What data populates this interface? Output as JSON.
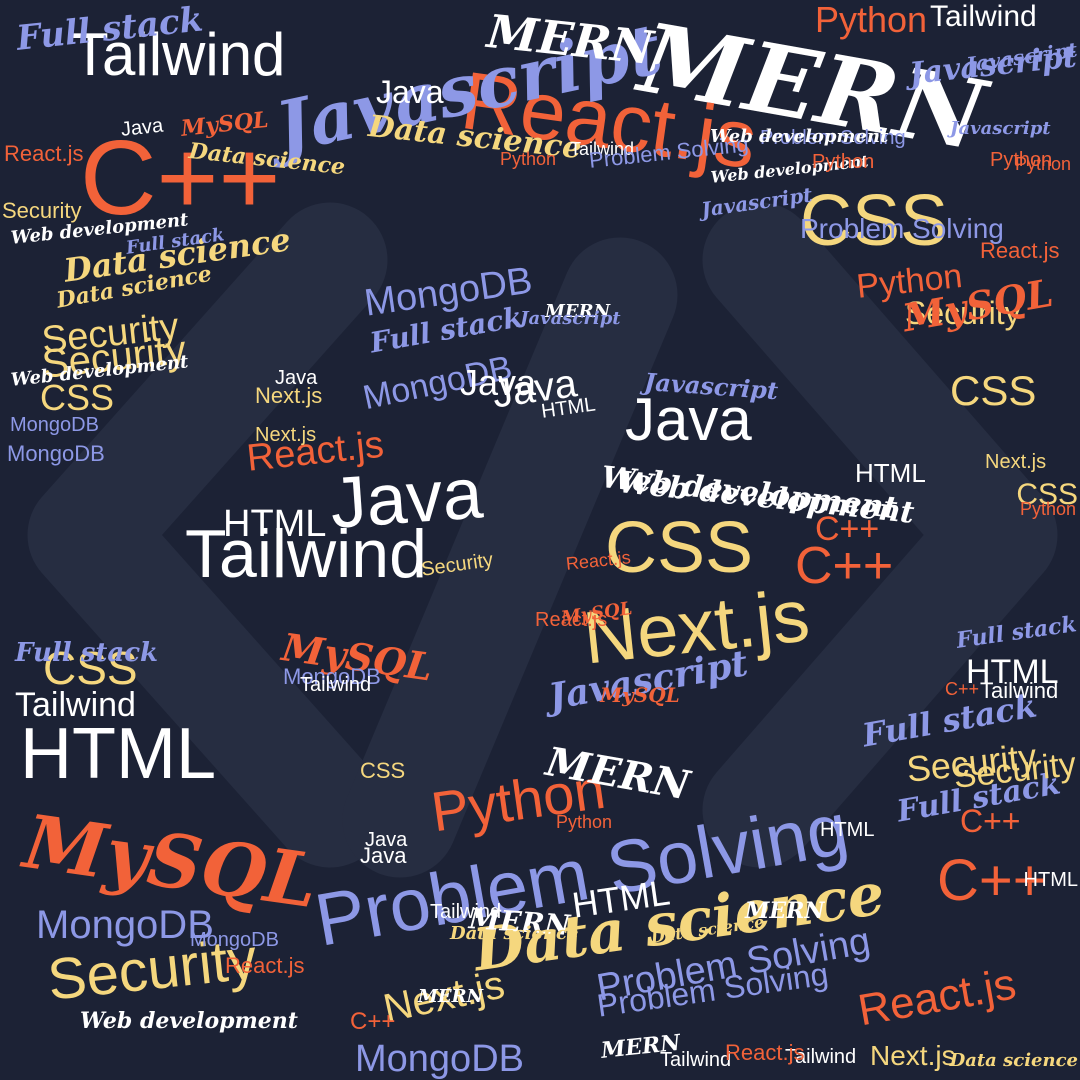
{
  "colors": {
    "background": "#1c2235",
    "bracket": "#262d41",
    "white": "#ffffff",
    "orange": "#f26239",
    "periwinkle": "#8d98e6",
    "yellow": "#f5d77e"
  },
  "words": [
    {
      "t": "MERN",
      "c": "white",
      "f": "script"
    },
    {
      "t": "Problem Solving",
      "c": "periwinkle",
      "f": "sans"
    },
    {
      "t": "React.js",
      "c": "orange",
      "f": "sans"
    },
    {
      "t": "Javascript",
      "c": "periwinkle",
      "f": "script"
    },
    {
      "t": "C++",
      "c": "orange",
      "f": "sans"
    },
    {
      "t": "Data science",
      "c": "yellow",
      "f": "script"
    },
    {
      "t": "MySQL",
      "c": "orange",
      "f": "script"
    },
    {
      "t": "Java",
      "c": "white",
      "f": "sans"
    },
    {
      "t": "Tailwind",
      "c": "white",
      "f": "sans"
    },
    {
      "t": "HTML",
      "c": "white",
      "f": "sans"
    },
    {
      "t": "Security",
      "c": "yellow",
      "f": "sans"
    },
    {
      "t": "CSS",
      "c": "yellow",
      "f": "sans"
    },
    {
      "t": "Next.js",
      "c": "yellow",
      "f": "sans"
    },
    {
      "t": "Python",
      "c": "orange",
      "f": "sans"
    },
    {
      "t": "Java",
      "c": "white",
      "f": "sans"
    },
    {
      "t": "Tailwind",
      "c": "white",
      "f": "sans"
    },
    {
      "t": "Web development",
      "c": "white",
      "f": "script"
    },
    {
      "t": "C++",
      "c": "orange",
      "f": "sans"
    },
    {
      "t": "CSS",
      "c": "yellow",
      "f": "sans"
    },
    {
      "t": "MongoDB",
      "c": "periwinkle",
      "f": "sans"
    },
    {
      "t": "Full stack",
      "c": "periwinkle",
      "f": "script"
    },
    {
      "t": "Javascript",
      "c": "periwinkle",
      "f": "script"
    },
    {
      "t": "MERN",
      "c": "white",
      "f": "script"
    },
    {
      "t": "Python",
      "c": "orange",
      "f": "sans"
    },
    {
      "t": "React.js",
      "c": "orange",
      "f": "sans"
    },
    {
      "t": "Data science",
      "c": "yellow",
      "f": "script"
    },
    {
      "t": "Security",
      "c": "yellow",
      "f": "sans"
    },
    {
      "t": "MongoDB",
      "c": "periwinkle",
      "f": "sans"
    },
    {
      "t": "Problem Solving",
      "c": "periwinkle",
      "f": "sans"
    },
    {
      "t": "Next.js",
      "c": "yellow",
      "f": "sans"
    },
    {
      "t": "MySQL",
      "c": "orange",
      "f": "script"
    },
    {
      "t": "HTML",
      "c": "white",
      "f": "sans"
    },
    {
      "t": "C++",
      "c": "orange",
      "f": "sans"
    },
    {
      "t": "Full stack",
      "c": "periwinkle",
      "f": "script"
    },
    {
      "t": "Security",
      "c": "yellow",
      "f": "sans"
    },
    {
      "t": "Python",
      "c": "orange",
      "f": "sans"
    },
    {
      "t": "MERN",
      "c": "white",
      "f": "script"
    },
    {
      "t": "CSS",
      "c": "yellow",
      "f": "sans"
    },
    {
      "t": "Tailwind",
      "c": "white",
      "f": "sans"
    },
    {
      "t": "MongoDB",
      "c": "periwinkle",
      "f": "sans"
    },
    {
      "t": "Full stack",
      "c": "periwinkle",
      "f": "script"
    },
    {
      "t": "MERN",
      "c": "white",
      "f": "script"
    },
    {
      "t": "Javascript",
      "c": "periwinkle",
      "f": "script"
    },
    {
      "t": "Tailwind",
      "c": "white",
      "f": "sans"
    },
    {
      "t": "Java",
      "c": "white",
      "f": "sans"
    },
    {
      "t": "Security",
      "c": "yellow",
      "f": "sans"
    },
    {
      "t": "React.js",
      "c": "orange",
      "f": "sans"
    },
    {
      "t": "HTML",
      "c": "white",
      "f": "sans"
    },
    {
      "t": "Data science",
      "c": "yellow",
      "f": "script"
    },
    {
      "t": "MySQL",
      "c": "orange",
      "f": "script"
    },
    {
      "t": "Security",
      "c": "yellow",
      "f": "sans"
    },
    {
      "t": "Python",
      "c": "orange",
      "f": "sans"
    },
    {
      "t": "CSS",
      "c": "yellow",
      "f": "sans"
    },
    {
      "t": "Java",
      "c": "white",
      "f": "sans"
    },
    {
      "t": "MongoDB",
      "c": "periwinkle",
      "f": "sans"
    },
    {
      "t": "HTML",
      "c": "white",
      "f": "sans"
    },
    {
      "t": "Next.js",
      "c": "yellow",
      "f": "sans"
    },
    {
      "t": "React.js",
      "c": "orange",
      "f": "sans"
    },
    {
      "t": "C++",
      "c": "orange",
      "f": "sans"
    },
    {
      "t": "Web development",
      "c": "white",
      "f": "script"
    },
    {
      "t": "Data science",
      "c": "yellow",
      "f": "script"
    },
    {
      "t": "Web development",
      "c": "white",
      "f": "script"
    },
    {
      "t": "MySQL",
      "c": "orange",
      "f": "script"
    },
    {
      "t": "Full stack",
      "c": "periwinkle",
      "f": "script"
    },
    {
      "t": "React.js",
      "c": "orange",
      "f": "sans"
    },
    {
      "t": "Javascript",
      "c": "periwinkle",
      "f": "script"
    },
    {
      "t": "Next.js",
      "c": "yellow",
      "f": "sans"
    },
    {
      "t": "Security",
      "c": "yellow",
      "f": "sans"
    },
    {
      "t": "Problem Solving",
      "c": "periwinkle",
      "f": "sans"
    },
    {
      "t": "MERN",
      "c": "white",
      "f": "script"
    },
    {
      "t": "Java",
      "c": "white",
      "f": "sans"
    },
    {
      "t": "Web development",
      "c": "white",
      "f": "script"
    },
    {
      "t": "CSS",
      "c": "yellow",
      "f": "sans"
    },
    {
      "t": "MongoDB",
      "c": "periwinkle",
      "f": "sans"
    },
    {
      "t": "Data science",
      "c": "yellow",
      "f": "script"
    },
    {
      "t": "Python",
      "c": "orange",
      "f": "sans"
    },
    {
      "t": "Full stack",
      "c": "periwinkle",
      "f": "script"
    },
    {
      "t": "HTML",
      "c": "white",
      "f": "sans"
    },
    {
      "t": "Tailwind",
      "c": "white",
      "f": "sans"
    },
    {
      "t": "Javascript",
      "c": "periwinkle",
      "f": "script"
    },
    {
      "t": "C++",
      "c": "orange",
      "f": "sans"
    },
    {
      "t": "Java",
      "c": "white",
      "f": "sans"
    },
    {
      "t": "Next.js",
      "c": "yellow",
      "f": "sans"
    },
    {
      "t": "React.js",
      "c": "orange",
      "f": "sans"
    },
    {
      "t": "HTML",
      "c": "white",
      "f": "sans"
    },
    {
      "t": "Security",
      "c": "yellow",
      "f": "sans"
    },
    {
      "t": "MERN",
      "c": "white",
      "f": "script"
    },
    {
      "t": "Web development",
      "c": "white",
      "f": "script"
    },
    {
      "t": "Python",
      "c": "orange",
      "f": "sans"
    },
    {
      "t": "MySQL",
      "c": "orange",
      "f": "script"
    },
    {
      "t": "Problem Solving",
      "c": "periwinkle",
      "f": "sans"
    },
    {
      "t": "Java",
      "c": "white",
      "f": "sans"
    },
    {
      "t": "Tailwind",
      "c": "white",
      "f": "sans"
    },
    {
      "t": "Python",
      "c": "orange",
      "f": "sans"
    },
    {
      "t": "Javascript",
      "c": "periwinkle",
      "f": "script"
    },
    {
      "t": "Data science",
      "c": "yellow",
      "f": "script"
    },
    {
      "t": "React.js",
      "c": "orange",
      "f": "sans"
    },
    {
      "t": "MongoDB",
      "c": "periwinkle",
      "f": "sans"
    },
    {
      "t": "MongoDB",
      "c": "periwinkle",
      "f": "sans"
    },
    {
      "t": "Tailwind",
      "c": "white",
      "f": "sans"
    },
    {
      "t": "MERN",
      "c": "white",
      "f": "script"
    },
    {
      "t": "Full stack",
      "c": "periwinkle",
      "f": "script"
    },
    {
      "t": "C++",
      "c": "orange",
      "f": "sans"
    },
    {
      "t": "Security",
      "c": "yellow",
      "f": "sans"
    },
    {
      "t": "CSS",
      "c": "yellow",
      "f": "sans"
    },
    {
      "t": "MongoDB",
      "c": "periwinkle",
      "f": "sans"
    },
    {
      "t": "Full stack",
      "c": "periwinkle",
      "f": "script"
    },
    {
      "t": "HTML",
      "c": "white",
      "f": "sans"
    },
    {
      "t": "Tailwind",
      "c": "white",
      "f": "sans"
    },
    {
      "t": "Python",
      "c": "orange",
      "f": "sans"
    },
    {
      "t": "HTML",
      "c": "white",
      "f": "sans"
    },
    {
      "t": "Java",
      "c": "white",
      "f": "sans"
    },
    {
      "t": "Python",
      "c": "orange",
      "f": "sans"
    },
    {
      "t": "MERN",
      "c": "white",
      "f": "script"
    },
    {
      "t": "Problem Solving",
      "c": "periwinkle",
      "f": "sans"
    },
    {
      "t": "Web development",
      "c": "white",
      "f": "script"
    },
    {
      "t": "Tailwind",
      "c": "white",
      "f": "sans"
    },
    {
      "t": "Javascript",
      "c": "periwinkle",
      "f": "script"
    },
    {
      "t": "Data science",
      "c": "yellow",
      "f": "script"
    },
    {
      "t": "Problem Solving",
      "c": "periwinkle",
      "f": "sans"
    },
    {
      "t": "MySQL",
      "c": "orange",
      "f": "script"
    },
    {
      "t": "CSS",
      "c": "yellow",
      "f": "sans"
    },
    {
      "t": "Next.js",
      "c": "yellow",
      "f": "sans"
    },
    {
      "t": "React.js",
      "c": "orange",
      "f": "sans"
    },
    {
      "t": "Java",
      "c": "white",
      "f": "sans"
    },
    {
      "t": "Tailwind",
      "c": "white",
      "f": "sans"
    },
    {
      "t": "Data science",
      "c": "yellow",
      "f": "script"
    },
    {
      "t": "React.js",
      "c": "orange",
      "f": "sans"
    },
    {
      "t": "C++",
      "c": "orange",
      "f": "sans"
    },
    {
      "t": "Web development",
      "c": "white",
      "f": "script"
    },
    {
      "t": "Javascript",
      "c": "periwinkle",
      "f": "script"
    }
  ]
}
